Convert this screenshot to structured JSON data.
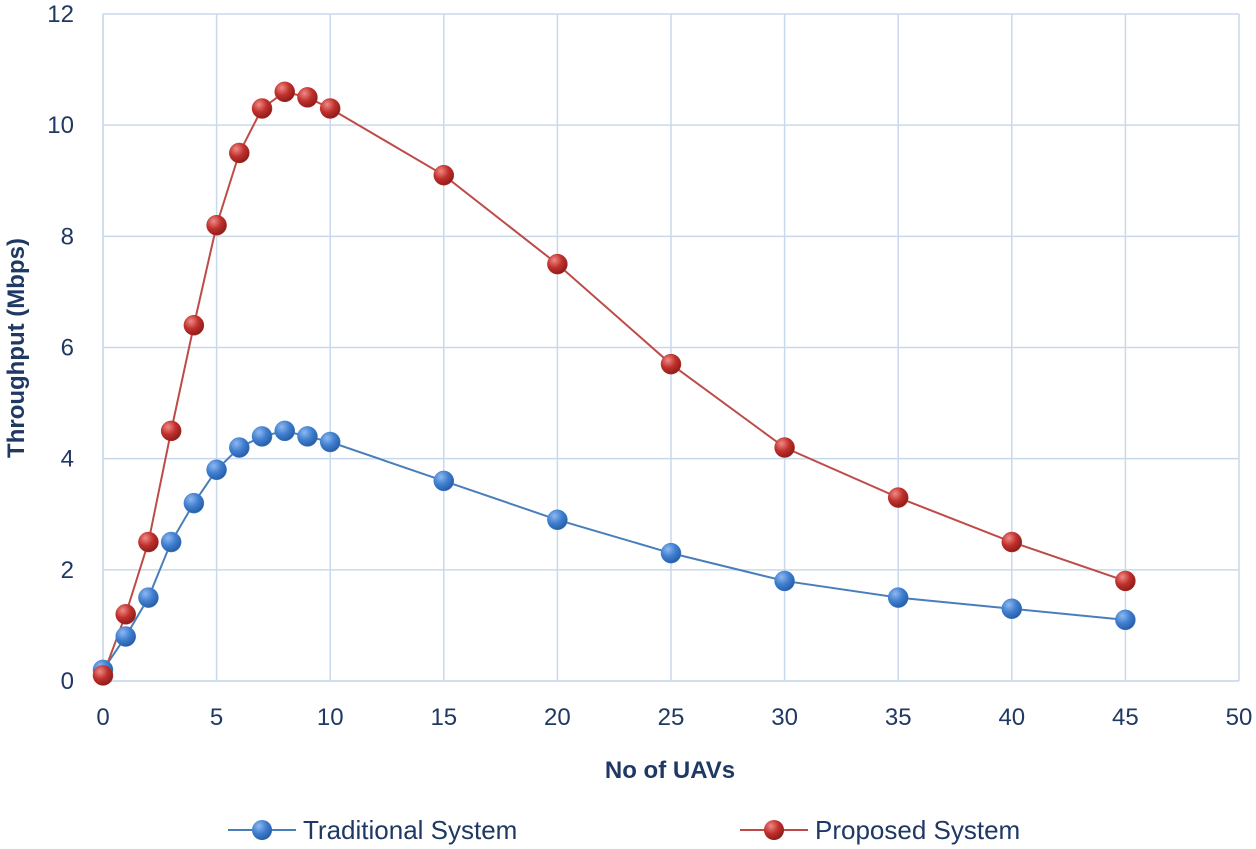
{
  "chart_data": {
    "type": "line",
    "title": "",
    "xlabel": "No of UAVs",
    "ylabel": "Throughput (Mbps)",
    "xlim": [
      0,
      50
    ],
    "ylim": [
      0,
      12
    ],
    "x_ticks": [
      0,
      5,
      10,
      15,
      20,
      25,
      30,
      35,
      40,
      45,
      50
    ],
    "y_ticks": [
      0,
      2,
      4,
      6,
      8,
      10,
      12
    ],
    "x_tick_labels": [
      "0",
      "5",
      "10",
      "15",
      "20",
      "25",
      "30",
      "35",
      "40",
      "45",
      "50"
    ],
    "y_tick_labels": [
      "0",
      "2",
      "4",
      "6",
      "8",
      "10",
      "12"
    ],
    "grid": true,
    "legend_position": "bottom",
    "x": [
      0,
      1,
      2,
      3,
      4,
      5,
      6,
      7,
      8,
      9,
      10,
      15,
      20,
      25,
      30,
      35,
      40,
      45
    ],
    "series": [
      {
        "name": "Traditional System",
        "color": "#4a7ebb",
        "marker_color": "#3f7fd0",
        "values": [
          0.2,
          0.8,
          1.5,
          2.5,
          3.2,
          3.8,
          4.2,
          4.4,
          4.5,
          4.4,
          4.3,
          3.6,
          2.9,
          2.3,
          1.8,
          1.5,
          1.3,
          1.1
        ]
      },
      {
        "name": "Proposed System",
        "color": "#be4b48",
        "marker_color": "#c0302c",
        "values": [
          0.1,
          1.2,
          2.5,
          4.5,
          6.4,
          8.2,
          9.5,
          10.3,
          10.6,
          10.5,
          10.3,
          9.1,
          7.5,
          5.7,
          4.2,
          3.3,
          2.5,
          1.8
        ]
      }
    ]
  }
}
